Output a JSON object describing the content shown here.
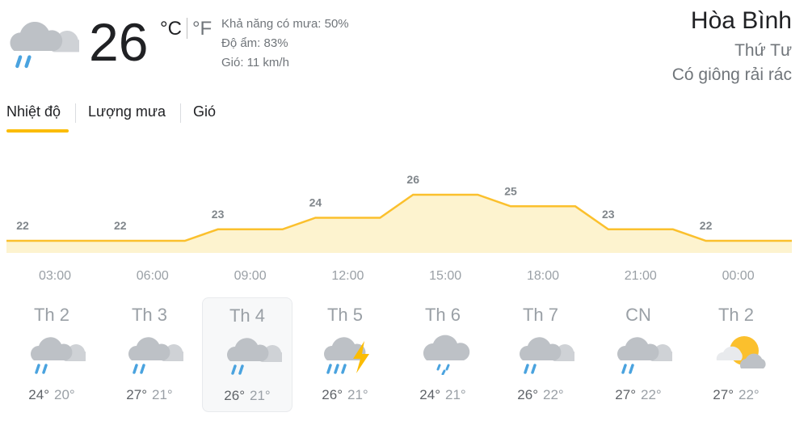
{
  "current": {
    "temp": "26",
    "unit_c": "°C",
    "unit_f": "°F",
    "icon": "cloud-rain-icon",
    "precip": "Khả năng có mưa: 50%",
    "humidity": "Độ ẩm: 83%",
    "wind": "Gió: 11 km/h"
  },
  "location": {
    "city": "Hòa Bình",
    "day": "Thứ Tư",
    "condition": "Có giông rải rác"
  },
  "tabs": [
    {
      "label": "Nhiệt độ",
      "active": true
    },
    {
      "label": "Lượng mưa",
      "active": false
    },
    {
      "label": "Gió",
      "active": false
    }
  ],
  "chart_data": {
    "type": "area",
    "categories": [
      "03:00",
      "06:00",
      "09:00",
      "12:00",
      "15:00",
      "18:00",
      "21:00",
      "00:00"
    ],
    "values": [
      22,
      22,
      23,
      24,
      26,
      25,
      23,
      22
    ],
    "labels": [
      "22",
      "22",
      "23",
      "24",
      "26",
      "25",
      "23",
      "22"
    ],
    "line_color": "#fbc02d",
    "fill_color": "#fdf3cf"
  },
  "days": [
    {
      "name": "Th 2",
      "hi": "24°",
      "lo": "20°",
      "icon": "cloud-rain-icon",
      "selected": false
    },
    {
      "name": "Th 3",
      "hi": "27°",
      "lo": "21°",
      "icon": "cloud-rain-icon",
      "selected": false
    },
    {
      "name": "Th 4",
      "hi": "26°",
      "lo": "21°",
      "icon": "cloud-rain-icon",
      "selected": true
    },
    {
      "name": "Th 5",
      "hi": "26°",
      "lo": "21°",
      "icon": "thunderstorm-icon",
      "selected": false
    },
    {
      "name": "Th 6",
      "hi": "24°",
      "lo": "21°",
      "icon": "cloud-showers-icon",
      "selected": false
    },
    {
      "name": "Th 7",
      "hi": "26°",
      "lo": "22°",
      "icon": "cloud-rain-icon",
      "selected": false
    },
    {
      "name": "CN",
      "hi": "27°",
      "lo": "22°",
      "icon": "cloud-rain-icon",
      "selected": false
    },
    {
      "name": "Th 2",
      "hi": "27°",
      "lo": "22°",
      "icon": "partly-cloudy-icon",
      "selected": false
    }
  ]
}
